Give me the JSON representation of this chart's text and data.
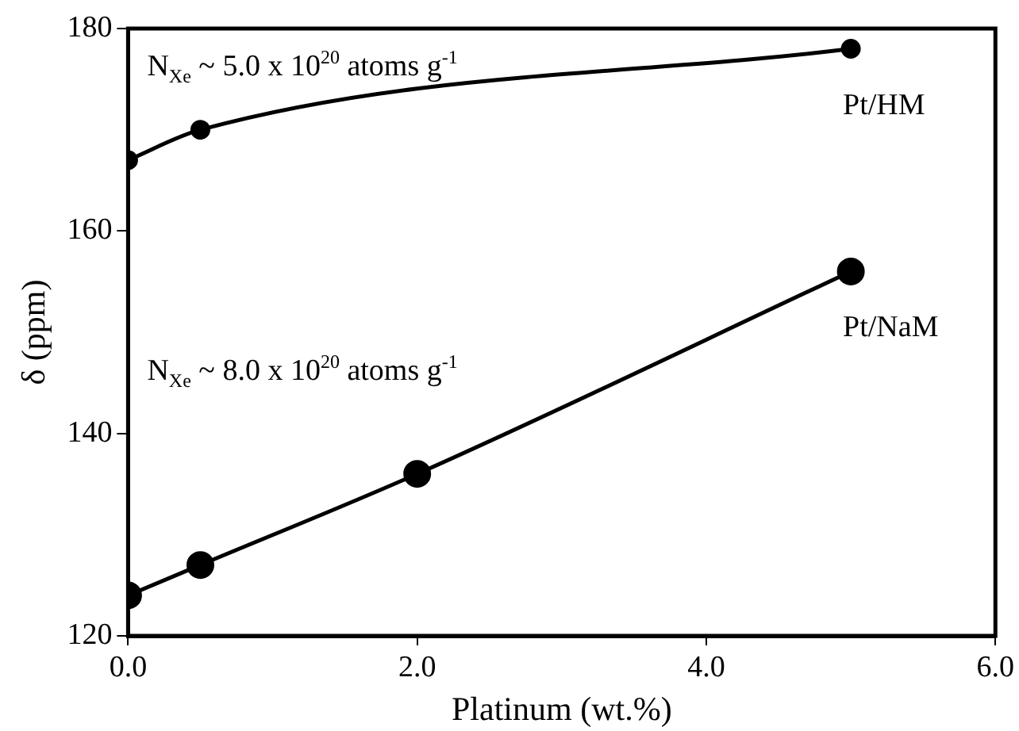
{
  "chart_data": {
    "type": "line",
    "xlabel": "Platinum (wt.%)",
    "ylabel": "δ (ppm)",
    "xlim": [
      0,
      6
    ],
    "xticks": [
      {
        "value": 0,
        "label": "0.0"
      },
      {
        "value": 2,
        "label": "2.0"
      },
      {
        "value": 4,
        "label": "4.0"
      },
      {
        "value": 6,
        "label": "6.0"
      }
    ],
    "ylim": [
      120,
      180
    ],
    "yticks": [
      120,
      140,
      160,
      180
    ],
    "series": [
      {
        "name": "Pt/HM",
        "color": "#000000",
        "x": [
          0,
          0.5,
          5
        ],
        "values": [
          167,
          170,
          178
        ]
      },
      {
        "name": "Pt/NaM",
        "color": "#000000",
        "x": [
          0,
          0.5,
          2,
          5
        ],
        "values": [
          124,
          127,
          136,
          156
        ]
      }
    ],
    "annotations": [
      "N$_{Xe}$ ~ 5.0 x 10$^{20}$ atoms g$^{-1}$",
      "N$_{Xe}$ ~ 8.0 x 10$^{20}$ atoms g$^{-1}$"
    ],
    "marker": "circle",
    "line_style": "solid",
    "grid": false,
    "legend": false
  }
}
